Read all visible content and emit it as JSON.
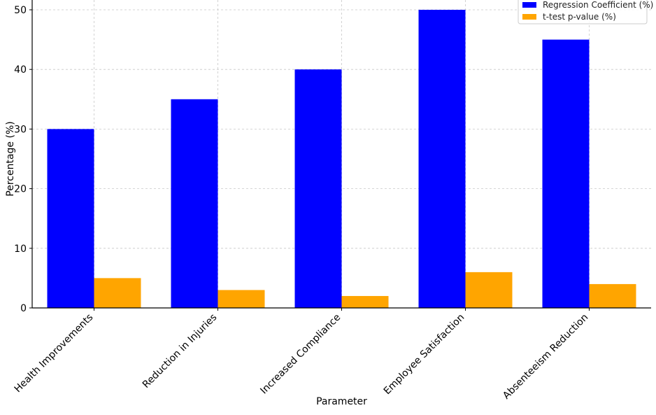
{
  "chart_data": {
    "type": "bar",
    "title": "",
    "xlabel": "Parameter",
    "ylabel": "Percentage (%)",
    "ylim": [
      0,
      50
    ],
    "yticks": [
      0,
      10,
      20,
      30,
      40,
      50
    ],
    "grid": true,
    "legend_position": "top-right",
    "categories": [
      "Health Improvements",
      "Reduction in Injuries",
      "Increased Compliance",
      "Employee Satisfaction",
      "Absenteeism Reduction"
    ],
    "series": [
      {
        "name": "Regression Coefficient (%)",
        "color": "#0000ff",
        "values": [
          30,
          35,
          40,
          50,
          45
        ]
      },
      {
        "name": "t-test p-value (%)",
        "color": "#ffa500",
        "values": [
          5,
          3,
          2,
          6,
          4
        ]
      }
    ]
  }
}
